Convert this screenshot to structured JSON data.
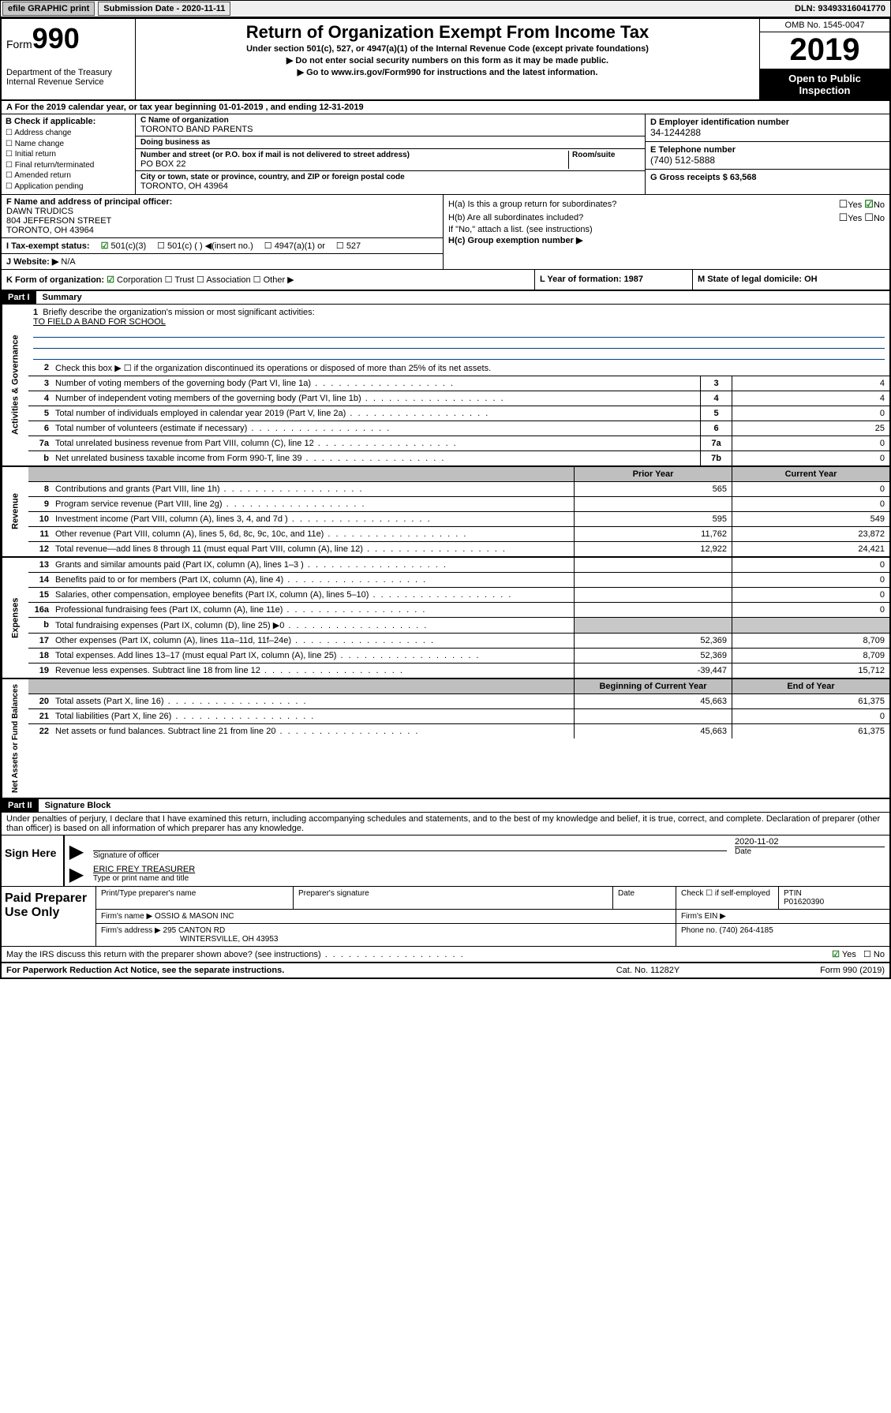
{
  "topbar": {
    "efile": "efile GRAPHIC print",
    "sub_lbl": "Submission Date - 2020-11-11",
    "dln": "DLN: 93493316041770"
  },
  "header": {
    "form_word": "Form",
    "form_num": "990",
    "dept": "Department of the Treasury\nInternal Revenue Service",
    "title": "Return of Organization Exempt From Income Tax",
    "sub1": "Under section 501(c), 527, or 4947(a)(1) of the Internal Revenue Code (except private foundations)",
    "sub2": "▶ Do not enter social security numbers on this form as it may be made public.",
    "sub3": "▶ Go to www.irs.gov/Form990 for instructions and the latest information.",
    "omb": "OMB No. 1545-0047",
    "year": "2019",
    "open": "Open to Public Inspection"
  },
  "rowA": "A For the 2019 calendar year, or tax year beginning 01-01-2019    , and ending 12-31-2019",
  "B": {
    "hdr": "B Check if applicable:",
    "items": [
      "Address change",
      "Name change",
      "Initial return",
      "Final return/terminated",
      "Amended return",
      "Application pending"
    ]
  },
  "C": {
    "name_lbl": "C Name of organization",
    "name": "TORONTO BAND PARENTS",
    "dba_lbl": "Doing business as",
    "dba": "",
    "addr_lbl": "Number and street (or P.O. box if mail is not delivered to street address)",
    "room_lbl": "Room/suite",
    "addr": "PO BOX 22",
    "city_lbl": "City or town, state or province, country, and ZIP or foreign postal code",
    "city": "TORONTO, OH  43964"
  },
  "D": {
    "lbl": "D Employer identification number",
    "val": "34-1244288"
  },
  "E": {
    "lbl": "E Telephone number",
    "val": "(740) 512-5888"
  },
  "G": {
    "lbl": "G Gross receipts $ 63,568"
  },
  "F": {
    "lbl": "F  Name and address of principal officer:",
    "name": "DAWN TRUDICS",
    "addr1": "804 JEFFERSON STREET",
    "addr2": "TORONTO, OH  43964"
  },
  "H": {
    "a": "H(a)  Is this a group return for subordinates?",
    "b": "H(b)  Are all subordinates included?",
    "b2": "If \"No,\" attach a list. (see instructions)",
    "c": "H(c)  Group exemption number ▶"
  },
  "I": {
    "lbl": "I    Tax-exempt status:",
    "opts": [
      "501(c)(3)",
      "501(c) (  ) ◀(insert no.)",
      "4947(a)(1) or",
      "527"
    ]
  },
  "J": {
    "lbl": "J   Website: ▶",
    "val": "N/A"
  },
  "K": {
    "lbl": "K Form of organization:",
    "opts": [
      "Corporation",
      "Trust",
      "Association",
      "Other ▶"
    ]
  },
  "L": {
    "lbl": "L Year of formation: 1987"
  },
  "M": {
    "lbl": "M State of legal domicile: OH"
  },
  "part1": {
    "hdr": "Part I",
    "title": "Summary"
  },
  "gov": {
    "label": "Activities & Governance",
    "q1": "Briefly describe the organization's mission or most significant activities:",
    "q1v": "TO FIELD A BAND FOR SCHOOL",
    "q2": "Check this box ▶ ☐  if the organization discontinued its operations or disposed of more than 25% of its net assets.",
    "rows": [
      {
        "n": "3",
        "t": "Number of voting members of the governing body (Part VI, line 1a)",
        "c": "3",
        "v": "4"
      },
      {
        "n": "4",
        "t": "Number of independent voting members of the governing body (Part VI, line 1b)",
        "c": "4",
        "v": "4"
      },
      {
        "n": "5",
        "t": "Total number of individuals employed in calendar year 2019 (Part V, line 2a)",
        "c": "5",
        "v": "0"
      },
      {
        "n": "6",
        "t": "Total number of volunteers (estimate if necessary)",
        "c": "6",
        "v": "25"
      },
      {
        "n": "7a",
        "t": "Total unrelated business revenue from Part VIII, column (C), line 12",
        "c": "7a",
        "v": "0"
      },
      {
        "n": "b",
        "t": "Net unrelated business taxable income from Form 990-T, line 39",
        "c": "7b",
        "v": "0"
      }
    ]
  },
  "hdr_py": "Prior Year",
  "hdr_cy": "Current Year",
  "rev": {
    "label": "Revenue",
    "rows": [
      {
        "n": "8",
        "t": "Contributions and grants (Part VIII, line 1h)",
        "p": "565",
        "c": "0"
      },
      {
        "n": "9",
        "t": "Program service revenue (Part VIII, line 2g)",
        "p": "",
        "c": "0"
      },
      {
        "n": "10",
        "t": "Investment income (Part VIII, column (A), lines 3, 4, and 7d )",
        "p": "595",
        "c": "549"
      },
      {
        "n": "11",
        "t": "Other revenue (Part VIII, column (A), lines 5, 6d, 8c, 9c, 10c, and 11e)",
        "p": "11,762",
        "c": "23,872"
      },
      {
        "n": "12",
        "t": "Total revenue—add lines 8 through 11 (must equal Part VIII, column (A), line 12)",
        "p": "12,922",
        "c": "24,421"
      }
    ]
  },
  "exp": {
    "label": "Expenses",
    "rows": [
      {
        "n": "13",
        "t": "Grants and similar amounts paid (Part IX, column (A), lines 1–3 )",
        "p": "",
        "c": "0"
      },
      {
        "n": "14",
        "t": "Benefits paid to or for members (Part IX, column (A), line 4)",
        "p": "",
        "c": "0"
      },
      {
        "n": "15",
        "t": "Salaries, other compensation, employee benefits (Part IX, column (A), lines 5–10)",
        "p": "",
        "c": "0"
      },
      {
        "n": "16a",
        "t": "Professional fundraising fees (Part IX, column (A), line 11e)",
        "p": "",
        "c": "0"
      },
      {
        "n": "b",
        "t": "Total fundraising expenses (Part IX, column (D), line 25) ▶0",
        "p": "gray",
        "c": "gray"
      },
      {
        "n": "17",
        "t": "Other expenses (Part IX, column (A), lines 11a–11d, 11f–24e)",
        "p": "52,369",
        "c": "8,709"
      },
      {
        "n": "18",
        "t": "Total expenses. Add lines 13–17 (must equal Part IX, column (A), line 25)",
        "p": "52,369",
        "c": "8,709"
      },
      {
        "n": "19",
        "t": "Revenue less expenses. Subtract line 18 from line 12",
        "p": "-39,447",
        "c": "15,712"
      }
    ]
  },
  "hdr_boy": "Beginning of Current Year",
  "hdr_eoy": "End of Year",
  "net": {
    "label": "Net Assets or Fund Balances",
    "rows": [
      {
        "n": "20",
        "t": "Total assets (Part X, line 16)",
        "p": "45,663",
        "c": "61,375"
      },
      {
        "n": "21",
        "t": "Total liabilities (Part X, line 26)",
        "p": "",
        "c": "0"
      },
      {
        "n": "22",
        "t": "Net assets or fund balances. Subtract line 21 from line 20",
        "p": "45,663",
        "c": "61,375"
      }
    ]
  },
  "part2": {
    "hdr": "Part II",
    "title": "Signature Block"
  },
  "perjury": "Under penalties of perjury, I declare that I have examined this return, including accompanying schedules and statements, and to the best of my knowledge and belief, it is true, correct, and complete. Declaration of preparer (other than officer) is based on all information of which preparer has any knowledge.",
  "sign": {
    "here": "Sign Here",
    "sig_lbl": "Signature of officer",
    "date": "2020-11-02",
    "date_lbl": "Date",
    "name": "ERIC FREY TREASURER",
    "name_lbl": "Type or print name and title"
  },
  "paid": {
    "lbl": "Paid Preparer Use Only",
    "h1": "Print/Type preparer's name",
    "h2": "Preparer's signature",
    "h3": "Date",
    "h4": "Check ☐ if self-employed",
    "h5": "PTIN",
    "ptin": "P01620390",
    "firm_lbl": "Firm's name    ▶",
    "firm": "OSSIO & MASON INC",
    "ein_lbl": "Firm's EIN ▶",
    "addr_lbl": "Firm's address ▶",
    "addr1": "295 CANTON RD",
    "addr2": "WINTERSVILLE, OH  43953",
    "phone_lbl": "Phone no. (740) 264-4185"
  },
  "discuss": "May the IRS discuss this return with the preparer shown above? (see instructions)",
  "footer": {
    "f1": "For Paperwork Reduction Act Notice, see the separate instructions.",
    "f2": "Cat. No. 11282Y",
    "f3": "Form 990 (2019)"
  }
}
